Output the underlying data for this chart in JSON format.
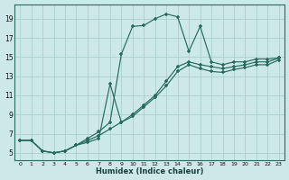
{
  "xlabel": "Humidex (Indice chaleur)",
  "bg_color": "#cce8e8",
  "grid_color": "#aacece",
  "line_color": "#276b5e",
  "spine_color": "#276b5e",
  "xlim": [
    -0.5,
    23.5
  ],
  "ylim": [
    4.2,
    20.5
  ],
  "xticks": [
    0,
    1,
    2,
    3,
    4,
    5,
    6,
    7,
    8,
    9,
    10,
    11,
    12,
    13,
    14,
    15,
    16,
    17,
    18,
    19,
    20,
    21,
    22,
    23
  ],
  "yticks": [
    5,
    7,
    9,
    11,
    13,
    15,
    17,
    19
  ],
  "curve1_x": [
    0,
    1,
    2,
    3,
    4,
    5,
    6,
    7,
    8,
    9,
    10,
    11,
    12,
    13,
    14,
    15,
    16,
    17,
    18,
    19,
    20,
    21,
    22,
    23
  ],
  "curve1_y": [
    6.3,
    6.3,
    5.2,
    5.0,
    5.2,
    5.8,
    6.5,
    7.2,
    8.2,
    15.3,
    18.2,
    18.3,
    19.0,
    19.5,
    19.2,
    15.6,
    18.2,
    14.5,
    14.2,
    14.5,
    14.5,
    14.8,
    14.8,
    14.9
  ],
  "curve2_x": [
    0,
    1,
    2,
    3,
    4,
    5,
    6,
    7,
    8,
    9,
    10,
    11,
    12,
    13,
    14,
    15,
    16,
    17,
    18,
    19,
    20,
    21,
    22,
    23
  ],
  "curve2_y": [
    6.3,
    6.3,
    5.2,
    5.0,
    5.2,
    5.8,
    6.3,
    6.8,
    7.5,
    8.2,
    9.0,
    10.0,
    11.0,
    12.5,
    14.0,
    14.5,
    14.2,
    14.0,
    13.8,
    14.0,
    14.2,
    14.5,
    14.5,
    14.9
  ],
  "curve3_x": [
    0,
    1,
    2,
    3,
    4,
    5,
    6,
    7,
    8,
    9,
    10,
    11,
    12,
    13,
    14,
    15,
    16,
    17,
    18,
    19,
    20,
    21,
    22,
    23
  ],
  "curve3_y": [
    6.3,
    6.3,
    5.2,
    5.0,
    5.2,
    5.8,
    6.1,
    6.5,
    12.2,
    8.2,
    8.8,
    9.8,
    10.8,
    12.0,
    13.5,
    14.2,
    13.8,
    13.5,
    13.4,
    13.7,
    13.9,
    14.2,
    14.2,
    14.7
  ],
  "xlabel_color": "#1a4040",
  "xlabel_fontsize": 6,
  "tick_fontsize_x": 4.5,
  "tick_fontsize_y": 5.5
}
